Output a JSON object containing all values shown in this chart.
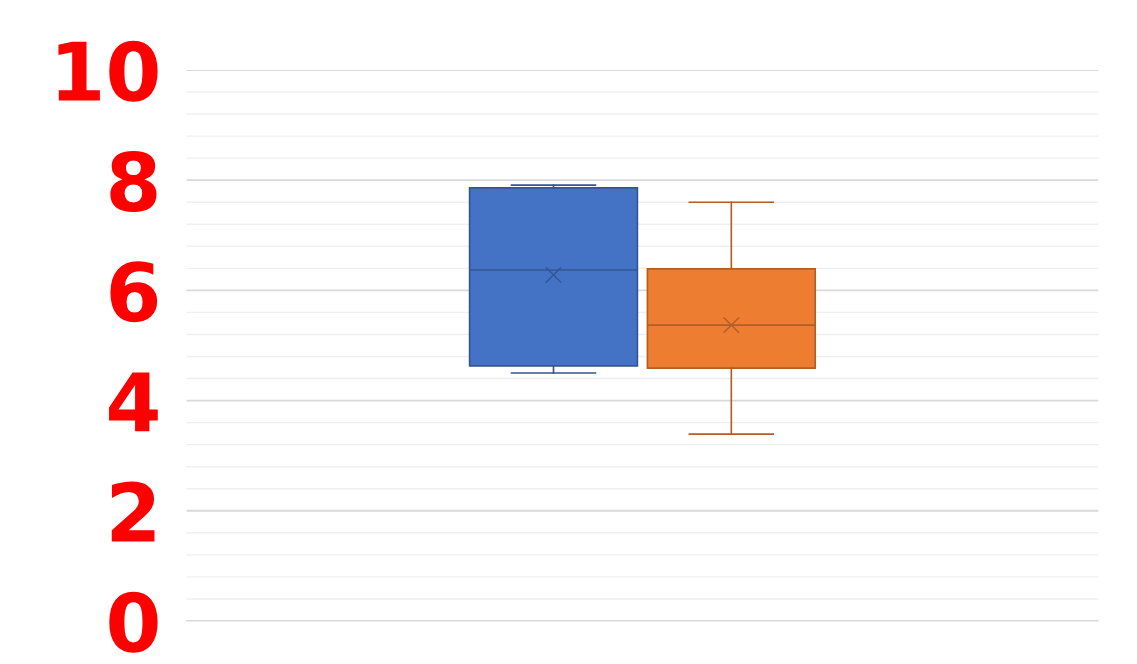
{
  "chart_data": {
    "type": "box",
    "categories": [
      null
    ],
    "series": [
      {
        "color": "#4472c4",
        "boxes": [
          {
            "low": 4.5,
            "q1": 4.63,
            "median": 6.37,
            "q3": 7.86,
            "high": 7.91,
            "mean": 6.28
          }
        ]
      },
      {
        "color": "#ed7d31",
        "boxes": [
          {
            "low": 3.39,
            "q1": 4.59,
            "median": 5.37,
            "q3": 6.39,
            "high": 7.6,
            "mean": 5.37
          }
        ]
      }
    ],
    "ylim": [
      0,
      10
    ],
    "yticks": [
      0,
      {
        "value": 0.4,
        "label": null
      },
      {
        "value": 0.8,
        "label": null
      },
      {
        "value": 1.2,
        "label": null
      },
      {
        "value": 1.6,
        "label": null
      },
      2,
      {
        "value": 2.4,
        "label": null
      },
      {
        "value": 2.8,
        "label": null
      },
      {
        "value": 3.2,
        "label": null
      },
      {
        "value": 3.6,
        "label": null
      },
      4,
      {
        "value": 4.4,
        "label": null
      },
      {
        "value": 4.8,
        "label": null
      },
      {
        "value": 5.2,
        "label": null
      },
      {
        "value": 5.6,
        "label": null
      },
      6,
      {
        "value": 6.4,
        "label": null
      },
      {
        "value": 6.8,
        "label": null
      },
      {
        "value": 7.2,
        "label": null
      },
      {
        "value": 7.6,
        "label": null
      },
      8,
      {
        "value": 8.4,
        "label": null
      },
      {
        "value": 8.8,
        "label": null
      },
      {
        "value": 9.2,
        "label": null
      },
      {
        "value": 9.6,
        "label": null
      },
      10
    ],
    "grid": "y",
    "marker": "cross"
  }
}
